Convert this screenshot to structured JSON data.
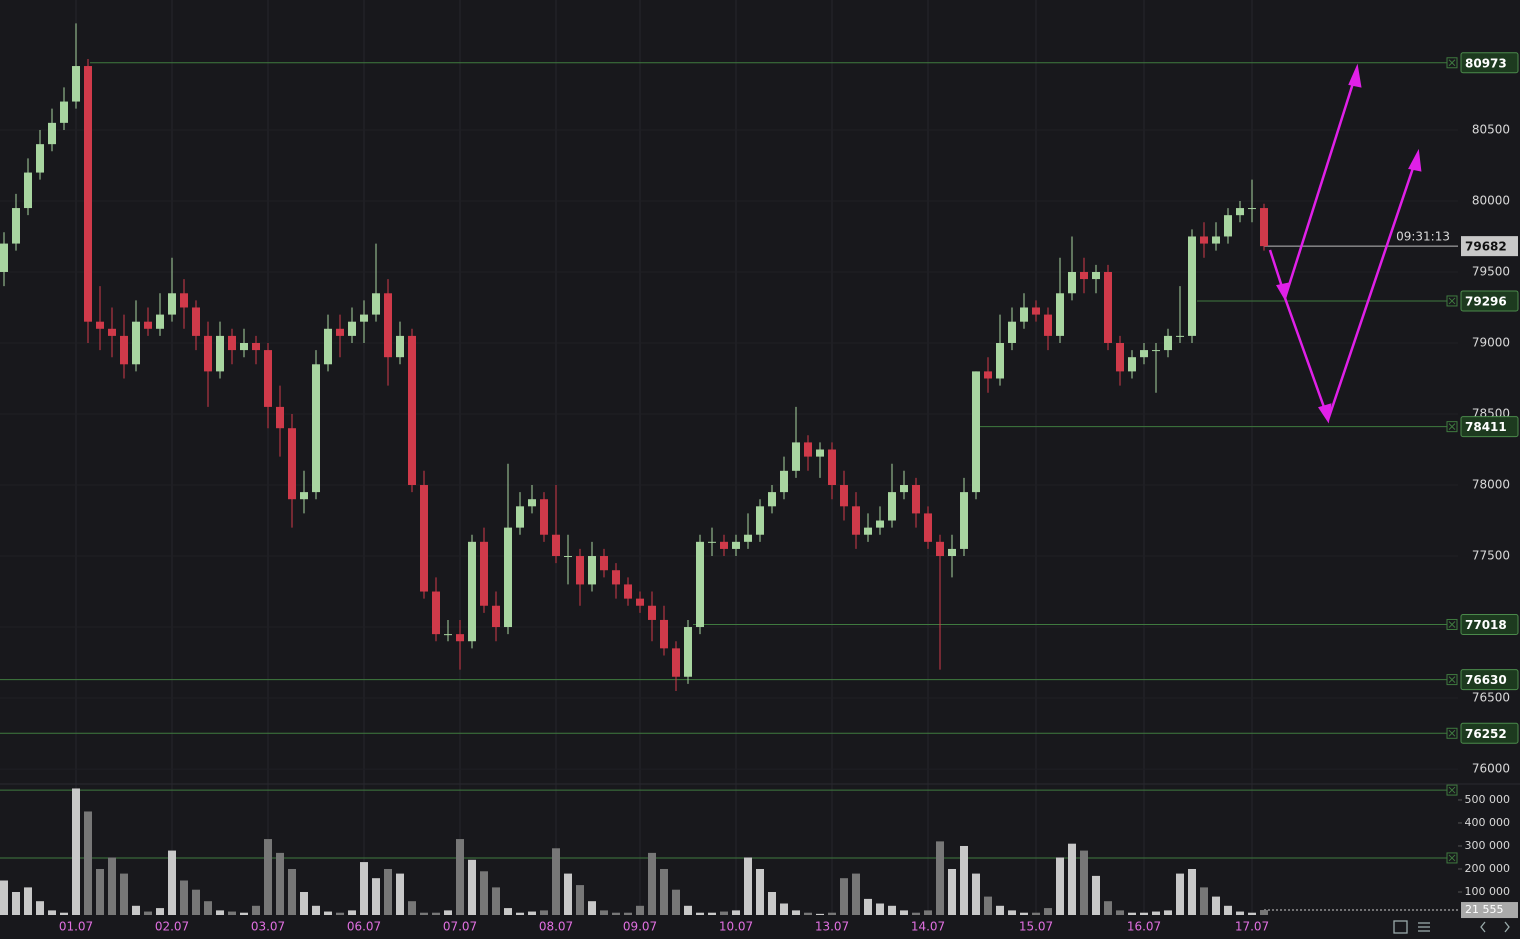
{
  "chart_data": {
    "type": "candlestick",
    "categories": [
      null,
      null,
      null,
      null,
      null,
      null,
      "01.07",
      null,
      null,
      null,
      null,
      null,
      null,
      null,
      "02.07",
      null,
      null,
      null,
      null,
      null,
      null,
      null,
      "03.07",
      null,
      null,
      null,
      null,
      null,
      null,
      null,
      "06.07",
      null,
      null,
      null,
      null,
      null,
      null,
      null,
      "07.07",
      null,
      null,
      null,
      null,
      null,
      null,
      null,
      "08.07",
      null,
      null,
      null,
      null,
      null,
      null,
      "09.07",
      null,
      null,
      null,
      null,
      null,
      null,
      null,
      "10.07",
      null,
      null,
      null,
      null,
      null,
      null,
      null,
      "13.07",
      null,
      null,
      null,
      null,
      null,
      null,
      null,
      "14.07",
      null,
      null,
      null,
      null,
      null,
      null,
      null,
      null,
      "15.07",
      null,
      null,
      null,
      null,
      null,
      null,
      null,
      null,
      "16.07",
      null,
      null,
      null,
      null,
      null,
      null,
      null,
      null,
      "17.07",
      null
    ],
    "candles": [
      [
        79500,
        79780,
        79400,
        79700
      ],
      [
        79700,
        80050,
        79650,
        79950
      ],
      [
        79950,
        80300,
        79900,
        80200
      ],
      [
        80200,
        80500,
        80150,
        80400
      ],
      [
        80400,
        80650,
        80350,
        80550
      ],
      [
        80550,
        80800,
        80500,
        80700
      ],
      [
        80700,
        81250,
        80650,
        80950
      ],
      [
        80950,
        81000,
        79000,
        79150
      ],
      [
        79150,
        79400,
        78950,
        79100
      ],
      [
        79100,
        79250,
        78900,
        79050
      ],
      [
        79050,
        79200,
        78750,
        78850
      ],
      [
        78850,
        79300,
        78800,
        79150
      ],
      [
        79150,
        79250,
        79050,
        79100
      ],
      [
        79100,
        79350,
        79050,
        79200
      ],
      [
        79200,
        79600,
        79150,
        79350
      ],
      [
        79350,
        79450,
        79100,
        79250
      ],
      [
        79250,
        79300,
        78950,
        79050
      ],
      [
        79050,
        79150,
        78550,
        78800
      ],
      [
        78800,
        79150,
        78750,
        79050
      ],
      [
        79050,
        79100,
        78850,
        78950
      ],
      [
        78950,
        79100,
        78900,
        79000
      ],
      [
        79000,
        79050,
        78850,
        78950
      ],
      [
        78950,
        79000,
        78400,
        78550
      ],
      [
        78550,
        78700,
        78200,
        78400
      ],
      [
        78400,
        78500,
        77700,
        77900
      ],
      [
        77900,
        78100,
        77800,
        77950
      ],
      [
        77950,
        78950,
        77900,
        78850
      ],
      [
        78850,
        79200,
        78800,
        79100
      ],
      [
        79100,
        79200,
        78900,
        79050
      ],
      [
        79050,
        79250,
        79000,
        79150
      ],
      [
        79150,
        79300,
        79000,
        79200
      ],
      [
        79200,
        79700,
        79150,
        79350
      ],
      [
        79350,
        79450,
        78700,
        78900
      ],
      [
        78900,
        79150,
        78850,
        79050
      ],
      [
        79050,
        79100,
        77950,
        78000
      ],
      [
        78000,
        78100,
        77200,
        77250
      ],
      [
        77250,
        77350,
        76900,
        76950
      ],
      [
        76950,
        77050,
        76900,
        76950
      ],
      [
        76950,
        77050,
        76700,
        76900
      ],
      [
        76900,
        77650,
        76850,
        77600
      ],
      [
        77600,
        77700,
        77100,
        77150
      ],
      [
        77150,
        77250,
        76900,
        77000
      ],
      [
        77000,
        78150,
        76950,
        77700
      ],
      [
        77700,
        77950,
        77650,
        77850
      ],
      [
        77850,
        78000,
        77800,
        77900
      ],
      [
        77900,
        77950,
        77600,
        77650
      ],
      [
        77650,
        78000,
        77450,
        77500
      ],
      [
        77500,
        77650,
        77300,
        77500
      ],
      [
        77500,
        77550,
        77150,
        77300
      ],
      [
        77300,
        77600,
        77250,
        77500
      ],
      [
        77500,
        77550,
        77350,
        77400
      ],
      [
        77400,
        77450,
        77200,
        77300
      ],
      [
        77300,
        77350,
        77150,
        77200
      ],
      [
        77200,
        77250,
        77100,
        77150
      ],
      [
        77150,
        77250,
        76900,
        77050
      ],
      [
        77050,
        77150,
        76800,
        76850
      ],
      [
        76850,
        76900,
        76550,
        76650
      ],
      [
        76650,
        77050,
        76600,
        77000
      ],
      [
        77000,
        77650,
        76950,
        77600
      ],
      [
        77600,
        77700,
        77500,
        77600
      ],
      [
        77600,
        77650,
        77500,
        77550
      ],
      [
        77550,
        77650,
        77500,
        77600
      ],
      [
        77600,
        77800,
        77550,
        77650
      ],
      [
        77650,
        77900,
        77600,
        77850
      ],
      [
        77850,
        78000,
        77800,
        77950
      ],
      [
        77950,
        78200,
        77900,
        78100
      ],
      [
        78100,
        78550,
        78050,
        78300
      ],
      [
        78300,
        78350,
        78100,
        78200
      ],
      [
        78200,
        78300,
        78050,
        78250
      ],
      [
        78250,
        78300,
        77900,
        78000
      ],
      [
        78000,
        78100,
        77750,
        77850
      ],
      [
        77850,
        77950,
        77550,
        77650
      ],
      [
        77650,
        77800,
        77600,
        77700
      ],
      [
        77700,
        77850,
        77650,
        77750
      ],
      [
        77750,
        78150,
        77700,
        77950
      ],
      [
        77950,
        78100,
        77900,
        78000
      ],
      [
        78000,
        78050,
        77700,
        77800
      ],
      [
        77800,
        77850,
        77550,
        77600
      ],
      [
        77600,
        77650,
        76700,
        77500
      ],
      [
        77500,
        77650,
        77350,
        77550
      ],
      [
        77550,
        78050,
        77500,
        77950
      ],
      [
        77950,
        78800,
        77900,
        78800
      ],
      [
        78800,
        78900,
        78650,
        78750
      ],
      [
        78750,
        79200,
        78700,
        79000
      ],
      [
        79000,
        79250,
        78950,
        79150
      ],
      [
        79150,
        79350,
        79100,
        79250
      ],
      [
        79250,
        79300,
        79150,
        79200
      ],
      [
        79200,
        79250,
        78950,
        79050
      ],
      [
        79050,
        79600,
        79000,
        79350
      ],
      [
        79350,
        79750,
        79300,
        79500
      ],
      [
        79500,
        79600,
        79350,
        79450
      ],
      [
        79450,
        79550,
        79350,
        79500
      ],
      [
        79500,
        79550,
        78950,
        79000
      ],
      [
        79000,
        79050,
        78700,
        78800
      ],
      [
        78800,
        78950,
        78750,
        78900
      ],
      [
        78900,
        79000,
        78850,
        78950
      ],
      [
        78950,
        79000,
        78650,
        78950
      ],
      [
        78950,
        79100,
        78900,
        79050
      ],
      [
        79050,
        79400,
        79000,
        79050
      ],
      [
        79050,
        79800,
        79000,
        79750
      ],
      [
        79750,
        79850,
        79600,
        79700
      ],
      [
        79700,
        79850,
        79650,
        79750
      ],
      [
        79750,
        79950,
        79700,
        79900
      ],
      [
        79900,
        80000,
        79850,
        79950
      ],
      [
        79950,
        80150,
        79850,
        79950
      ],
      [
        79950,
        79980,
        79650,
        79682
      ]
    ],
    "volumes": [
      150000,
      100000,
      120000,
      60000,
      20000,
      10000,
      550000,
      450000,
      200000,
      250000,
      180000,
      40000,
      15000,
      30000,
      280000,
      150000,
      110000,
      60000,
      20000,
      15000,
      10000,
      40000,
      330000,
      270000,
      200000,
      100000,
      40000,
      15000,
      10000,
      20000,
      230000,
      160000,
      200000,
      180000,
      60000,
      10000,
      10000,
      20000,
      330000,
      240000,
      190000,
      120000,
      30000,
      10000,
      15000,
      20000,
      290000,
      180000,
      130000,
      60000,
      20000,
      10000,
      10000,
      40000,
      270000,
      200000,
      110000,
      40000,
      10000,
      10000,
      15000,
      20000,
      250000,
      200000,
      100000,
      50000,
      20000,
      10000,
      5000,
      10000,
      160000,
      180000,
      70000,
      50000,
      40000,
      20000,
      10000,
      20000,
      320000,
      200000,
      300000,
      180000,
      80000,
      40000,
      20000,
      10000,
      10000,
      30000,
      250000,
      310000,
      280000,
      170000,
      60000,
      20000,
      10000,
      10000,
      15000,
      20000,
      180000,
      200000,
      120000,
      80000,
      40000,
      15000,
      10000,
      21555
    ],
    "current_volume_label": "21 555",
    "up_color": "#a8d5a0",
    "down_color": "#d03a4a",
    "ylim": [
      75923,
      81415
    ],
    "yticks": [
      76000,
      76500,
      77000,
      77500,
      78000,
      78500,
      79000,
      79500,
      80000,
      80500
    ],
    "volume_ylim": [
      0,
      552000
    ],
    "volume_ticks": [
      {
        "value": 100000,
        "label": "100 000"
      },
      {
        "value": 200000,
        "label": "200 000"
      },
      {
        "value": 300000,
        "label": "300 000"
      },
      {
        "value": 400000,
        "label": "400 000"
      },
      {
        "value": 500000,
        "label": "500 000"
      }
    ],
    "levels": [
      80973,
      79296,
      78411,
      77018,
      76630,
      76252
    ],
    "volume_levels": [
      543000,
      248000
    ],
    "level_color": "#3f7a3f",
    "timer": "09:31:13",
    "grid": true
  }
}
